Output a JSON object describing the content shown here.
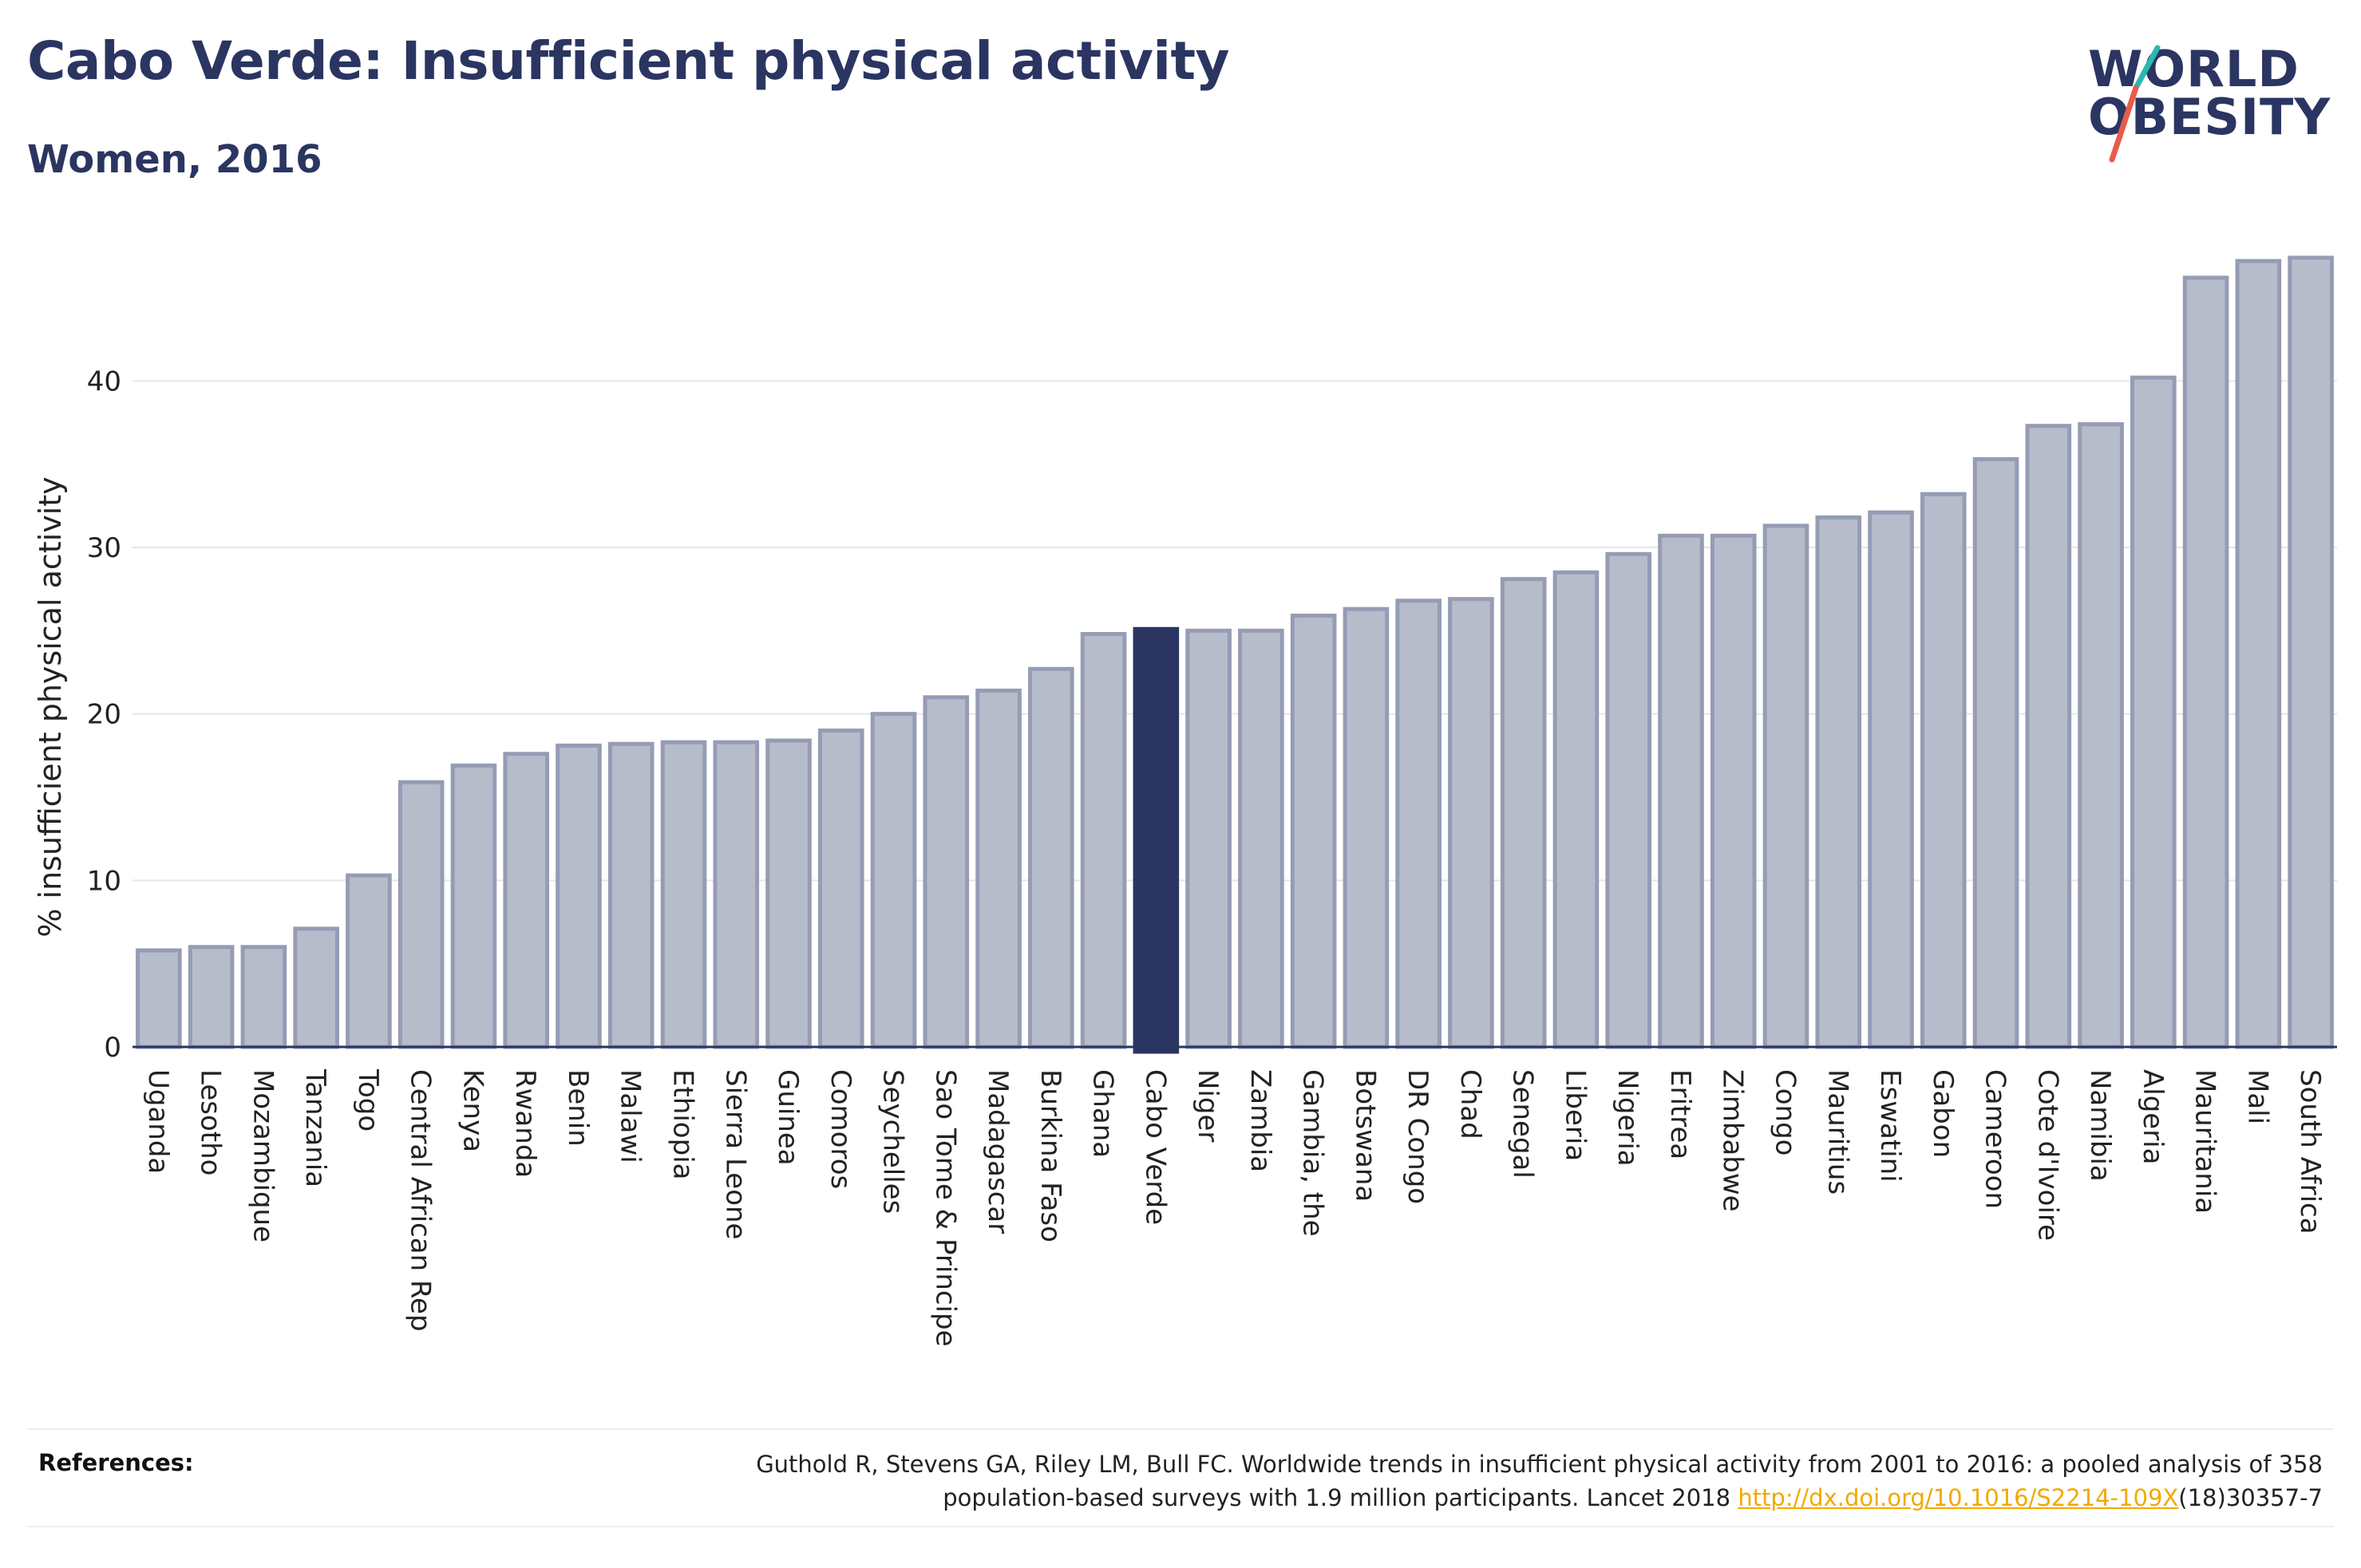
{
  "header": {
    "title": "Cabo Verde: Insufficient physical activity",
    "subtitle": "Women, 2016"
  },
  "logo": {
    "line1": "WORLD",
    "line2": "OBESITY",
    "stripe_colors": [
      "#2bb8b0",
      "#ea5b4b"
    ]
  },
  "chart_data": {
    "type": "bar",
    "ylabel": "% insufficient physical activity",
    "xlabel": "",
    "ylim": [
      0,
      48.5
    ],
    "yticks": [
      0,
      10,
      20,
      30,
      40
    ],
    "grid": true,
    "highlight": "Cabo Verde",
    "colors": {
      "bar": "#b7bccb",
      "bar_border": "#959cb4",
      "highlight": "#2b3561",
      "grid": "#e6e6e6",
      "axis": "#2b3561"
    },
    "categories": [
      "Uganda",
      "Lesotho",
      "Mozambique",
      "Tanzania",
      "Togo",
      "Central African Rep",
      "Kenya",
      "Rwanda",
      "Benin",
      "Malawi",
      "Ethiopia",
      "Sierra Leone",
      "Guinea",
      "Comoros",
      "Seychelles",
      "Sao Tome & Principe",
      "Madagascar",
      "Burkina Faso",
      "Ghana",
      "Cabo Verde",
      "Niger",
      "Zambia",
      "Gambia, the",
      "Botswana",
      "DR Congo",
      "Chad",
      "Senegal",
      "Liberia",
      "Nigeria",
      "Eritrea",
      "Zimbabwe",
      "Congo",
      "Mauritius",
      "Eswatini",
      "Gabon",
      "Cameroon",
      "Cote d'Ivoire",
      "Namibia",
      "Algeria",
      "Mauritania",
      "Mali",
      "South Africa"
    ],
    "values": [
      5.8,
      6.0,
      6.0,
      7.1,
      10.3,
      15.9,
      16.9,
      17.6,
      18.1,
      18.2,
      18.3,
      18.3,
      18.4,
      19.0,
      20.0,
      21.0,
      21.4,
      22.7,
      24.8,
      25.1,
      25.0,
      25.0,
      25.9,
      26.3,
      26.8,
      26.9,
      28.1,
      28.5,
      29.6,
      30.7,
      30.7,
      31.3,
      31.8,
      32.1,
      33.2,
      35.3,
      37.3,
      37.4,
      40.2,
      46.2,
      47.2,
      47.4
    ]
  },
  "references": {
    "label": "References:",
    "text_line1": "Guthold R, Stevens GA, Riley LM, Bull FC. Worldwide trends in insufficient physical activity from 2001 to 2016: a pooled analysis of 358",
    "text_line2_prefix": "population-based surveys with 1.9 million participants. Lancet 2018 ",
    "link": "http://dx.doi.org/10.1016/S2214-109X",
    "text_line2_suffix": "(18)30357-7"
  }
}
